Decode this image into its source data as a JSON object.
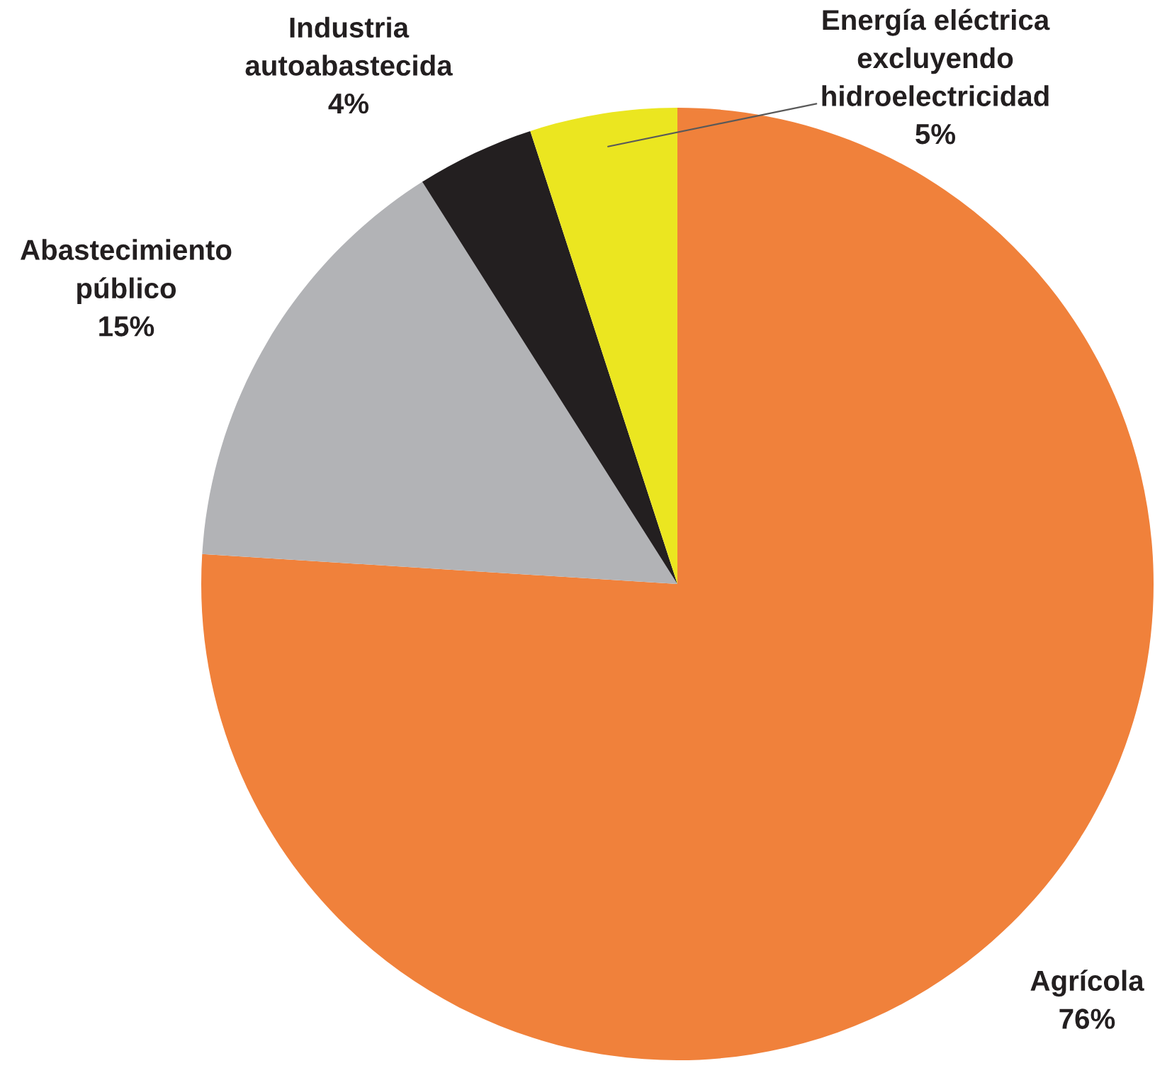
{
  "chart_data": {
    "type": "pie",
    "categories": [
      "Agrícola",
      "Abastecimiento\npúblico",
      "Industria\nautoabastecida",
      "Energía eléctrica\nexcluyendo\nhidroelectricidad"
    ],
    "values": [
      76,
      15,
      4,
      5
    ],
    "value_labels": [
      "76%",
      "15%",
      "4%",
      "5%"
    ],
    "colors": [
      "#f0813b",
      "#b2b3b6",
      "#231f20",
      "#ebe620"
    ]
  }
}
